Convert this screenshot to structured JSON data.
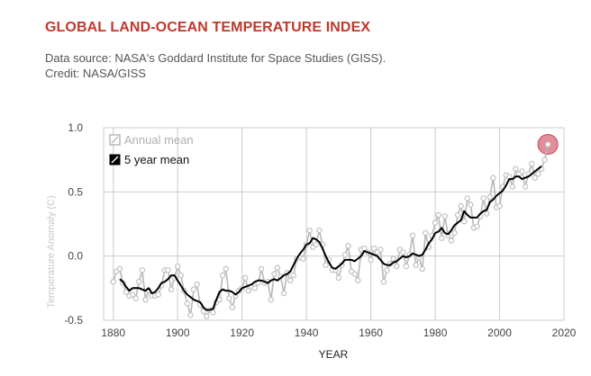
{
  "header": {
    "title": "GLOBAL LAND-OCEAN TEMPERATURE INDEX",
    "source_line": "Data source: NASA's Goddard Institute for Space Studies (GISS).",
    "credit_line": "Credit: NASA/GISS"
  },
  "chart_data": {
    "type": "line",
    "title": "GLOBAL LAND-OCEAN TEMPERATURE INDEX",
    "xlabel": "YEAR",
    "ylabel": "Temperature Anomaly (C)",
    "xlim": [
      1877,
      2020
    ],
    "ylim": [
      -0.5,
      1.0
    ],
    "x_ticks": [
      "1880",
      "1900",
      "1920",
      "1940",
      "1960",
      "1980",
      "2000",
      "2020"
    ],
    "y_ticks": [
      "1.0",
      "0.5",
      "0.0",
      "-0.5"
    ],
    "grid": true,
    "legend_position": "top-left",
    "colors": {
      "annual": "#b8b8b8",
      "five_year": "#000000",
      "highlight": "#d9687a",
      "grid": "#cccccc"
    },
    "highlight_point": {
      "x": 2015,
      "y": 0.87
    },
    "series": [
      {
        "name": "Annual mean",
        "x": [
          1880,
          1881,
          1882,
          1883,
          1884,
          1885,
          1886,
          1887,
          1888,
          1889,
          1890,
          1891,
          1892,
          1893,
          1894,
          1895,
          1896,
          1897,
          1898,
          1899,
          1900,
          1901,
          1902,
          1903,
          1904,
          1905,
          1906,
          1907,
          1908,
          1909,
          1910,
          1911,
          1912,
          1913,
          1914,
          1915,
          1916,
          1917,
          1918,
          1919,
          1920,
          1921,
          1922,
          1923,
          1924,
          1925,
          1926,
          1927,
          1928,
          1929,
          1930,
          1931,
          1932,
          1933,
          1934,
          1935,
          1936,
          1937,
          1938,
          1939,
          1940,
          1941,
          1942,
          1943,
          1944,
          1945,
          1946,
          1947,
          1948,
          1949,
          1950,
          1951,
          1952,
          1953,
          1954,
          1955,
          1956,
          1957,
          1958,
          1959,
          1960,
          1961,
          1962,
          1963,
          1964,
          1965,
          1966,
          1967,
          1968,
          1969,
          1970,
          1971,
          1972,
          1973,
          1974,
          1975,
          1976,
          1977,
          1978,
          1979,
          1980,
          1981,
          1982,
          1983,
          1984,
          1985,
          1986,
          1987,
          1988,
          1989,
          1990,
          1991,
          1992,
          1993,
          1994,
          1995,
          1996,
          1997,
          1998,
          1999,
          2000,
          2001,
          2002,
          2003,
          2004,
          2005,
          2006,
          2007,
          2008,
          2009,
          2010,
          2011,
          2012,
          2013,
          2014,
          2015
        ],
        "values": [
          -0.2,
          -0.12,
          -0.1,
          -0.21,
          -0.28,
          -0.31,
          -0.3,
          -0.33,
          -0.2,
          -0.11,
          -0.34,
          -0.27,
          -0.31,
          -0.31,
          -0.3,
          -0.23,
          -0.11,
          -0.11,
          -0.26,
          -0.17,
          -0.08,
          -0.15,
          -0.27,
          -0.37,
          -0.46,
          -0.26,
          -0.22,
          -0.38,
          -0.43,
          -0.47,
          -0.42,
          -0.44,
          -0.36,
          -0.34,
          -0.15,
          -0.1,
          -0.33,
          -0.4,
          -0.31,
          -0.27,
          -0.25,
          -0.17,
          -0.27,
          -0.24,
          -0.25,
          -0.21,
          -0.1,
          -0.21,
          -0.2,
          -0.34,
          -0.14,
          -0.09,
          -0.16,
          -0.29,
          -0.13,
          -0.19,
          -0.15,
          -0.02,
          -0.01,
          -0.02,
          0.09,
          0.2,
          0.07,
          0.09,
          0.2,
          0.09,
          -0.07,
          -0.03,
          -0.11,
          -0.11,
          -0.17,
          -0.07,
          0.01,
          0.08,
          -0.12,
          -0.14,
          -0.19,
          0.05,
          0.06,
          0.03,
          -0.03,
          0.06,
          0.03,
          0.05,
          -0.2,
          -0.11,
          -0.06,
          -0.02,
          -0.08,
          0.05,
          0.03,
          -0.08,
          0.01,
          0.16,
          -0.07,
          -0.01,
          -0.1,
          0.18,
          0.07,
          0.16,
          0.26,
          0.32,
          0.14,
          0.31,
          0.16,
          0.12,
          0.18,
          0.32,
          0.39,
          0.27,
          0.45,
          0.4,
          0.22,
          0.23,
          0.31,
          0.45,
          0.33,
          0.46,
          0.61,
          0.38,
          0.39,
          0.54,
          0.63,
          0.62,
          0.54,
          0.68,
          0.64,
          0.66,
          0.54,
          0.64,
          0.72,
          0.61,
          0.64,
          0.68,
          0.75,
          0.87
        ]
      },
      {
        "name": "5 year mean",
        "x": [
          1882,
          1883,
          1884,
          1885,
          1886,
          1887,
          1888,
          1889,
          1890,
          1891,
          1892,
          1893,
          1894,
          1895,
          1896,
          1897,
          1898,
          1899,
          1900,
          1901,
          1902,
          1903,
          1904,
          1905,
          1906,
          1907,
          1908,
          1909,
          1910,
          1911,
          1912,
          1913,
          1914,
          1915,
          1916,
          1917,
          1918,
          1919,
          1920,
          1921,
          1922,
          1923,
          1924,
          1925,
          1926,
          1927,
          1928,
          1929,
          1930,
          1931,
          1932,
          1933,
          1934,
          1935,
          1936,
          1937,
          1938,
          1939,
          1940,
          1941,
          1942,
          1943,
          1944,
          1945,
          1946,
          1947,
          1948,
          1949,
          1950,
          1951,
          1952,
          1953,
          1954,
          1955,
          1956,
          1957,
          1958,
          1959,
          1960,
          1961,
          1962,
          1963,
          1964,
          1965,
          1966,
          1967,
          1968,
          1969,
          1970,
          1971,
          1972,
          1973,
          1974,
          1975,
          1976,
          1977,
          1978,
          1979,
          1980,
          1981,
          1982,
          1983,
          1984,
          1985,
          1986,
          1987,
          1988,
          1989,
          1990,
          1991,
          1992,
          1993,
          1994,
          1995,
          1996,
          1997,
          1998,
          1999,
          2000,
          2001,
          2002,
          2003,
          2004,
          2005,
          2006,
          2007,
          2008,
          2009,
          2010,
          2011,
          2012,
          2013
        ],
        "values": [
          -0.18,
          -0.2,
          -0.24,
          -0.27,
          -0.25,
          -0.25,
          -0.25,
          -0.26,
          -0.27,
          -0.25,
          -0.29,
          -0.28,
          -0.25,
          -0.21,
          -0.2,
          -0.18,
          -0.15,
          -0.15,
          -0.19,
          -0.23,
          -0.27,
          -0.3,
          -0.32,
          -0.34,
          -0.35,
          -0.36,
          -0.4,
          -0.42,
          -0.42,
          -0.41,
          -0.34,
          -0.28,
          -0.26,
          -0.27,
          -0.27,
          -0.28,
          -0.3,
          -0.28,
          -0.25,
          -0.24,
          -0.23,
          -0.22,
          -0.2,
          -0.19,
          -0.19,
          -0.2,
          -0.21,
          -0.19,
          -0.18,
          -0.19,
          -0.17,
          -0.15,
          -0.14,
          -0.12,
          -0.07,
          -0.02,
          0.02,
          0.05,
          0.09,
          0.1,
          0.14,
          0.13,
          0.11,
          0.06,
          0.0,
          -0.05,
          -0.09,
          -0.1,
          -0.08,
          -0.06,
          -0.03,
          -0.03,
          -0.03,
          -0.04,
          -0.02,
          0.0,
          0.04,
          0.03,
          0.02,
          0.01,
          0.0,
          -0.03,
          -0.06,
          -0.07,
          -0.07,
          -0.05,
          -0.04,
          -0.02,
          0.0,
          -0.01,
          0.0,
          0.02,
          0.01,
          0.0,
          0.01,
          0.05,
          0.1,
          0.13,
          0.18,
          0.19,
          0.22,
          0.18,
          0.17,
          0.2,
          0.24,
          0.26,
          0.28,
          0.35,
          0.32,
          0.3,
          0.3,
          0.3,
          0.33,
          0.35,
          0.36,
          0.42,
          0.44,
          0.47,
          0.49,
          0.51,
          0.55,
          0.6,
          0.6,
          0.62,
          0.62,
          0.6,
          0.61,
          0.62,
          0.64,
          0.66,
          0.68,
          0.7
        ]
      }
    ]
  }
}
